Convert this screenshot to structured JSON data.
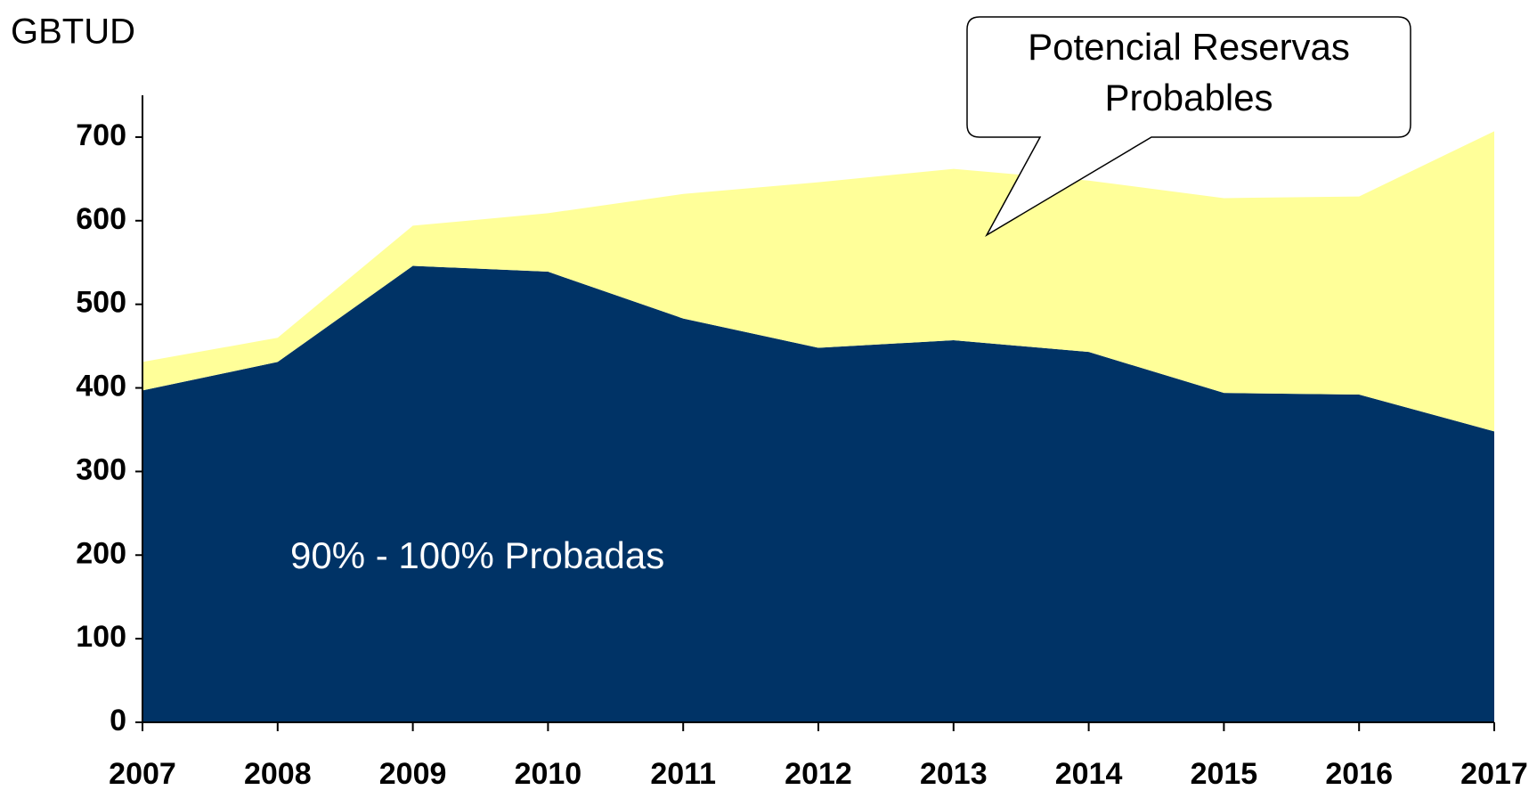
{
  "chart_data": {
    "type": "stacked-area",
    "y_label": "GBTUD",
    "categories": [
      "2007",
      "2008",
      "2009",
      "2010",
      "2011",
      "2012",
      "2013",
      "2014",
      "2015",
      "2016",
      "2017"
    ],
    "series": [
      {
        "name": "90% - 100% Probadas",
        "color": "#003366",
        "values": [
          397,
          431,
          546,
          539,
          483,
          448,
          457,
          443,
          394,
          392,
          348
        ]
      },
      {
        "name": "Potencial Reservas Probables",
        "color": "#ffff99",
        "values": [
          34,
          29,
          48,
          70,
          149,
          198,
          205,
          205,
          233,
          237,
          359
        ]
      }
    ],
    "ylim": [
      0,
      750
    ],
    "yticks": [
      0,
      100,
      200,
      300,
      400,
      500,
      600,
      700
    ]
  }
}
